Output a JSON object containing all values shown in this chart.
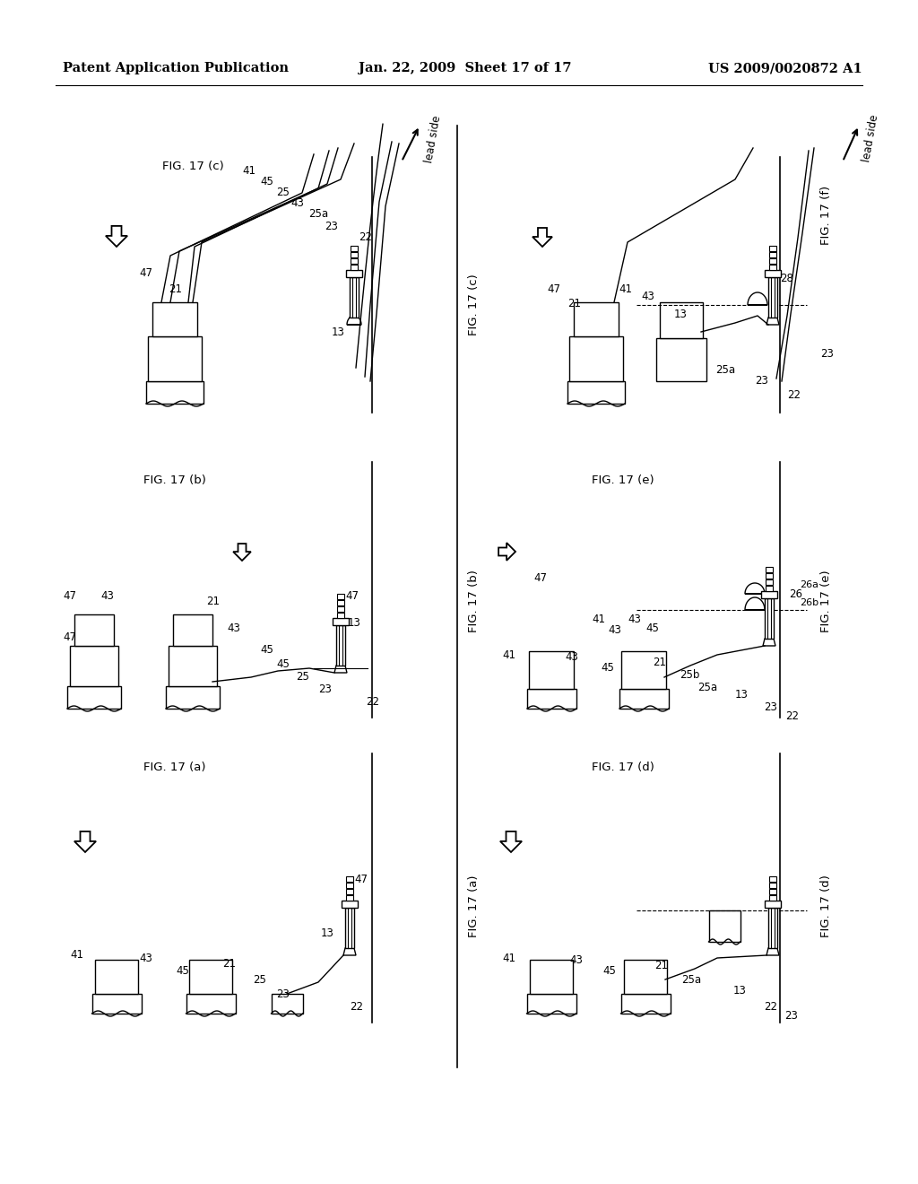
{
  "header_left": "Patent Application Publication",
  "header_center": "Jan. 22, 2009  Sheet 17 of 17",
  "header_right": "US 2009/0020872 A1",
  "bg_color": "#ffffff",
  "line_color": "#000000",
  "header_font_size": 10.5
}
